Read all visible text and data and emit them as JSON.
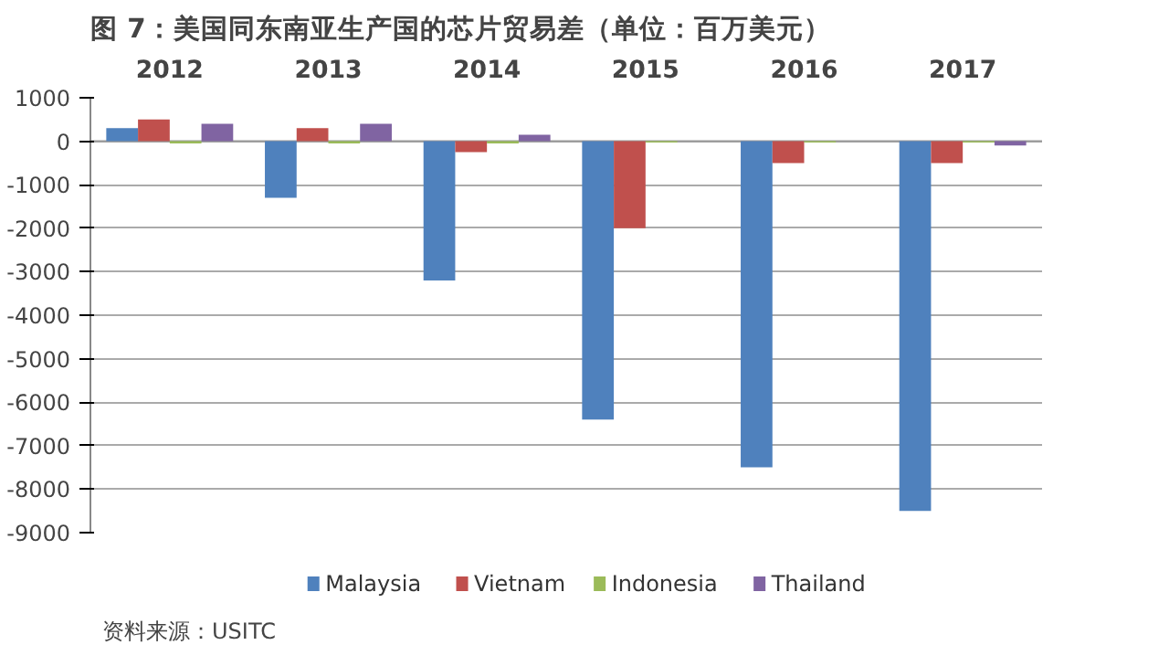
{
  "chart_data": {
    "type": "bar",
    "title": "图 7：美国同东南亚生产国的芯片贸易差（单位：百万美元）",
    "categories": [
      "2012",
      "2013",
      "2014",
      "2015",
      "2016",
      "2017"
    ],
    "series": [
      {
        "name": "Malaysia",
        "color": "#4f81bd",
        "values": [
          300,
          -1300,
          -3200,
          -6400,
          -7500,
          -8500
        ]
      },
      {
        "name": "Vietnam",
        "color": "#c0504d",
        "values": [
          500,
          300,
          -250,
          -2000,
          -500,
          -500
        ]
      },
      {
        "name": "Indonesia",
        "color": "#9bbb59",
        "values": [
          -50,
          -50,
          -50,
          -30,
          -30,
          -30
        ]
      },
      {
        "name": "Thailand",
        "color": "#8064a2",
        "values": [
          400,
          400,
          150,
          0,
          0,
          -100
        ]
      }
    ],
    "ylim": [
      -9000,
      1000
    ],
    "yticks": [
      -9000,
      -8000,
      -7000,
      -6000,
      -5000,
      -4000,
      -3000,
      -2000,
      -1000,
      0,
      1000
    ],
    "grid": "y",
    "legend": "bottom",
    "annotations": [
      "资料来源：USITC"
    ]
  }
}
